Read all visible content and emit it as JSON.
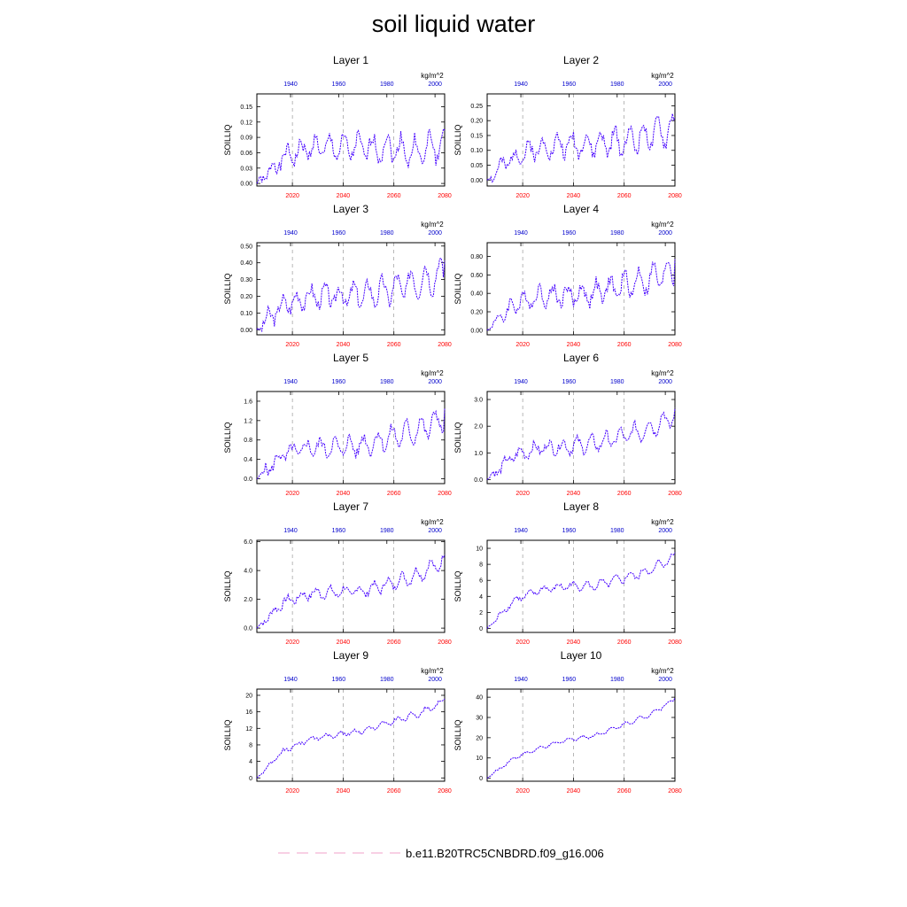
{
  "title": "soil liquid water",
  "legend": {
    "label": "b.e11.B20TRC5CNBDRD.f09_g16.006",
    "color": "#f0a0c8",
    "style": "dashed"
  },
  "colors": {
    "series": "#4400ff",
    "bottom_axis": "#ff0000",
    "top_axis": "#0000cc",
    "grid": "#888888"
  },
  "chart_data": [
    {
      "type": "line",
      "title": "Layer 1",
      "ylabel": "SOILLIQ",
      "units": "kg/m^2",
      "xlim": [
        2006,
        2080
      ],
      "top_xlim": [
        1926,
        2004
      ],
      "xticks": [
        2020,
        2040,
        2060,
        2080
      ],
      "top_xticks": [
        1940,
        1960,
        1980,
        2000
      ],
      "ylim": [
        -0.005,
        0.175
      ],
      "yticks": [
        0,
        0.03,
        0.06,
        0.09,
        0.12,
        0.15
      ],
      "ytick_labels": [
        "0.00",
        "0.03",
        "0.06",
        "0.09",
        "0.12",
        "0.15"
      ],
      "seed": 1,
      "base": [
        0,
        0.05,
        0.07,
        0.07,
        0.07,
        0.07,
        0.06,
        0.08
      ],
      "amp": 0.03
    },
    {
      "type": "line",
      "title": "Layer 2",
      "ylabel": "SOILLIQ",
      "units": "kg/m^2",
      "xlim": [
        2006,
        2080
      ],
      "top_xlim": [
        1926,
        2004
      ],
      "xticks": [
        2020,
        2040,
        2060,
        2080
      ],
      "top_xticks": [
        1940,
        1960,
        1980,
        2000
      ],
      "ylim": [
        -0.02,
        0.29
      ],
      "yticks": [
        0,
        0.05,
        0.1,
        0.15,
        0.2,
        0.25
      ],
      "ytick_labels": [
        "0.00",
        "0.05",
        "0.10",
        "0.15",
        "0.20",
        "0.25"
      ],
      "seed": 2,
      "base": [
        0,
        0.08,
        0.11,
        0.12,
        0.12,
        0.13,
        0.15,
        0.17
      ],
      "amp": 0.05
    },
    {
      "type": "line",
      "title": "Layer 3",
      "ylabel": "SOILLIQ",
      "units": "kg/m^2",
      "xlim": [
        2006,
        2080
      ],
      "top_xlim": [
        1926,
        2004
      ],
      "xticks": [
        2020,
        2040,
        2060,
        2080
      ],
      "top_xticks": [
        1940,
        1960,
        1980,
        2000
      ],
      "ylim": [
        -0.03,
        0.52
      ],
      "yticks": [
        0,
        0.1,
        0.2,
        0.3,
        0.4,
        0.5
      ],
      "ytick_labels": [
        "0.00",
        "0.10",
        "0.20",
        "0.30",
        "0.40",
        "0.50"
      ],
      "seed": 3,
      "base": [
        0,
        0.15,
        0.2,
        0.2,
        0.21,
        0.24,
        0.29,
        0.34
      ],
      "amp": 0.09
    },
    {
      "type": "line",
      "title": "Layer 4",
      "ylabel": "SOILLIQ",
      "units": "kg/m^2",
      "xlim": [
        2006,
        2080
      ],
      "top_xlim": [
        1926,
        2004
      ],
      "xticks": [
        2020,
        2040,
        2060,
        2080
      ],
      "top_xticks": [
        1940,
        1960,
        1980,
        2000
      ],
      "ylim": [
        -0.05,
        0.95
      ],
      "yticks": [
        0,
        0.2,
        0.4,
        0.6,
        0.8
      ],
      "ytick_labels": [
        "0.00",
        "0.20",
        "0.40",
        "0.60",
        "0.80"
      ],
      "seed": 4,
      "base": [
        0,
        0.28,
        0.38,
        0.38,
        0.4,
        0.48,
        0.55,
        0.65
      ],
      "amp": 0.15
    },
    {
      "type": "line",
      "title": "Layer 5",
      "ylabel": "SOILLIQ",
      "units": "kg/m^2",
      "xlim": [
        2006,
        2080
      ],
      "top_xlim": [
        1926,
        2004
      ],
      "xticks": [
        2020,
        2040,
        2060,
        2080
      ],
      "top_xticks": [
        1940,
        1960,
        1980,
        2000
      ],
      "ylim": [
        -0.1,
        1.8
      ],
      "yticks": [
        0,
        0.4,
        0.8,
        1.2,
        1.6
      ],
      "ytick_labels": [
        "0.0",
        "0.4",
        "0.8",
        "1.2",
        "1.6"
      ],
      "seed": 5,
      "base": [
        0,
        0.5,
        0.65,
        0.65,
        0.7,
        0.85,
        1.0,
        1.25
      ],
      "amp": 0.25
    },
    {
      "type": "line",
      "title": "Layer 6",
      "ylabel": "SOILLIQ",
      "units": "kg/m^2",
      "xlim": [
        2006,
        2080
      ],
      "top_xlim": [
        1926,
        2004
      ],
      "xticks": [
        2020,
        2040,
        2060,
        2080
      ],
      "top_xticks": [
        1940,
        1960,
        1980,
        2000
      ],
      "ylim": [
        -0.15,
        3.3
      ],
      "yticks": [
        0,
        1,
        2,
        3
      ],
      "ytick_labels": [
        "0.0",
        "1.0",
        "2.0",
        "3.0"
      ],
      "seed": 6,
      "base": [
        0,
        0.9,
        1.2,
        1.25,
        1.35,
        1.6,
        1.9,
        2.4
      ],
      "amp": 0.35
    },
    {
      "type": "line",
      "title": "Layer 7",
      "ylabel": "SOILLIQ",
      "units": "kg/m^2",
      "xlim": [
        2006,
        2080
      ],
      "top_xlim": [
        1926,
        2004
      ],
      "xticks": [
        2020,
        2040,
        2060,
        2080
      ],
      "top_xticks": [
        1940,
        1960,
        1980,
        2000
      ],
      "ylim": [
        -0.3,
        6.1
      ],
      "yticks": [
        0,
        2,
        4,
        6
      ],
      "ytick_labels": [
        "0.0",
        "2.0",
        "4.0",
        "6.0"
      ],
      "seed": 7,
      "base": [
        0,
        1.8,
        2.4,
        2.5,
        2.6,
        3.1,
        3.7,
        4.7
      ],
      "amp": 0.5
    },
    {
      "type": "line",
      "title": "Layer 8",
      "ylabel": "SOILLIQ",
      "units": "kg/m^2",
      "xlim": [
        2006,
        2080
      ],
      "top_xlim": [
        1926,
        2004
      ],
      "xticks": [
        2020,
        2040,
        2060,
        2080
      ],
      "top_xticks": [
        1940,
        1960,
        1980,
        2000
      ],
      "ylim": [
        -0.5,
        11
      ],
      "yticks": [
        0,
        2,
        4,
        6,
        8,
        10
      ],
      "ytick_labels": [
        "0",
        "2",
        "4",
        "6",
        "8",
        "10"
      ],
      "seed": 8,
      "base": [
        0,
        3.5,
        4.8,
        5.3,
        5.3,
        6.2,
        7.1,
        9.0
      ],
      "amp": 0.6
    },
    {
      "type": "line",
      "title": "Layer 9",
      "ylabel": "SOILLIQ",
      "units": "kg/m^2",
      "xlim": [
        2006,
        2080
      ],
      "top_xlim": [
        1926,
        2004
      ],
      "xticks": [
        2020,
        2040,
        2060,
        2080
      ],
      "top_xticks": [
        1940,
        1960,
        1980,
        2000
      ],
      "ylim": [
        -0.8,
        21.5
      ],
      "yticks": [
        0,
        4,
        8,
        12,
        16,
        20
      ],
      "ytick_labels": [
        "0",
        "4",
        "8",
        "12",
        "16",
        "20"
      ],
      "seed": 9,
      "base": [
        0,
        6.5,
        9.5,
        10.5,
        11.5,
        13.5,
        15.5,
        18.5
      ],
      "amp": 0.8
    },
    {
      "type": "line",
      "title": "Layer 10",
      "ylabel": "SOILLIQ",
      "units": "kg/m^2",
      "xlim": [
        2006,
        2080
      ],
      "top_xlim": [
        1926,
        2004
      ],
      "xticks": [
        2020,
        2040,
        2060,
        2080
      ],
      "top_xticks": [
        1940,
        1960,
        1980,
        2000
      ],
      "ylim": [
        -1.5,
        44
      ],
      "yticks": [
        0,
        10,
        20,
        30,
        40
      ],
      "ytick_labels": [
        "0",
        "10",
        "20",
        "30",
        "40"
      ],
      "seed": 10,
      "base": [
        0,
        10,
        15,
        19,
        21,
        26,
        31,
        39
      ],
      "amp": 1.0
    }
  ]
}
